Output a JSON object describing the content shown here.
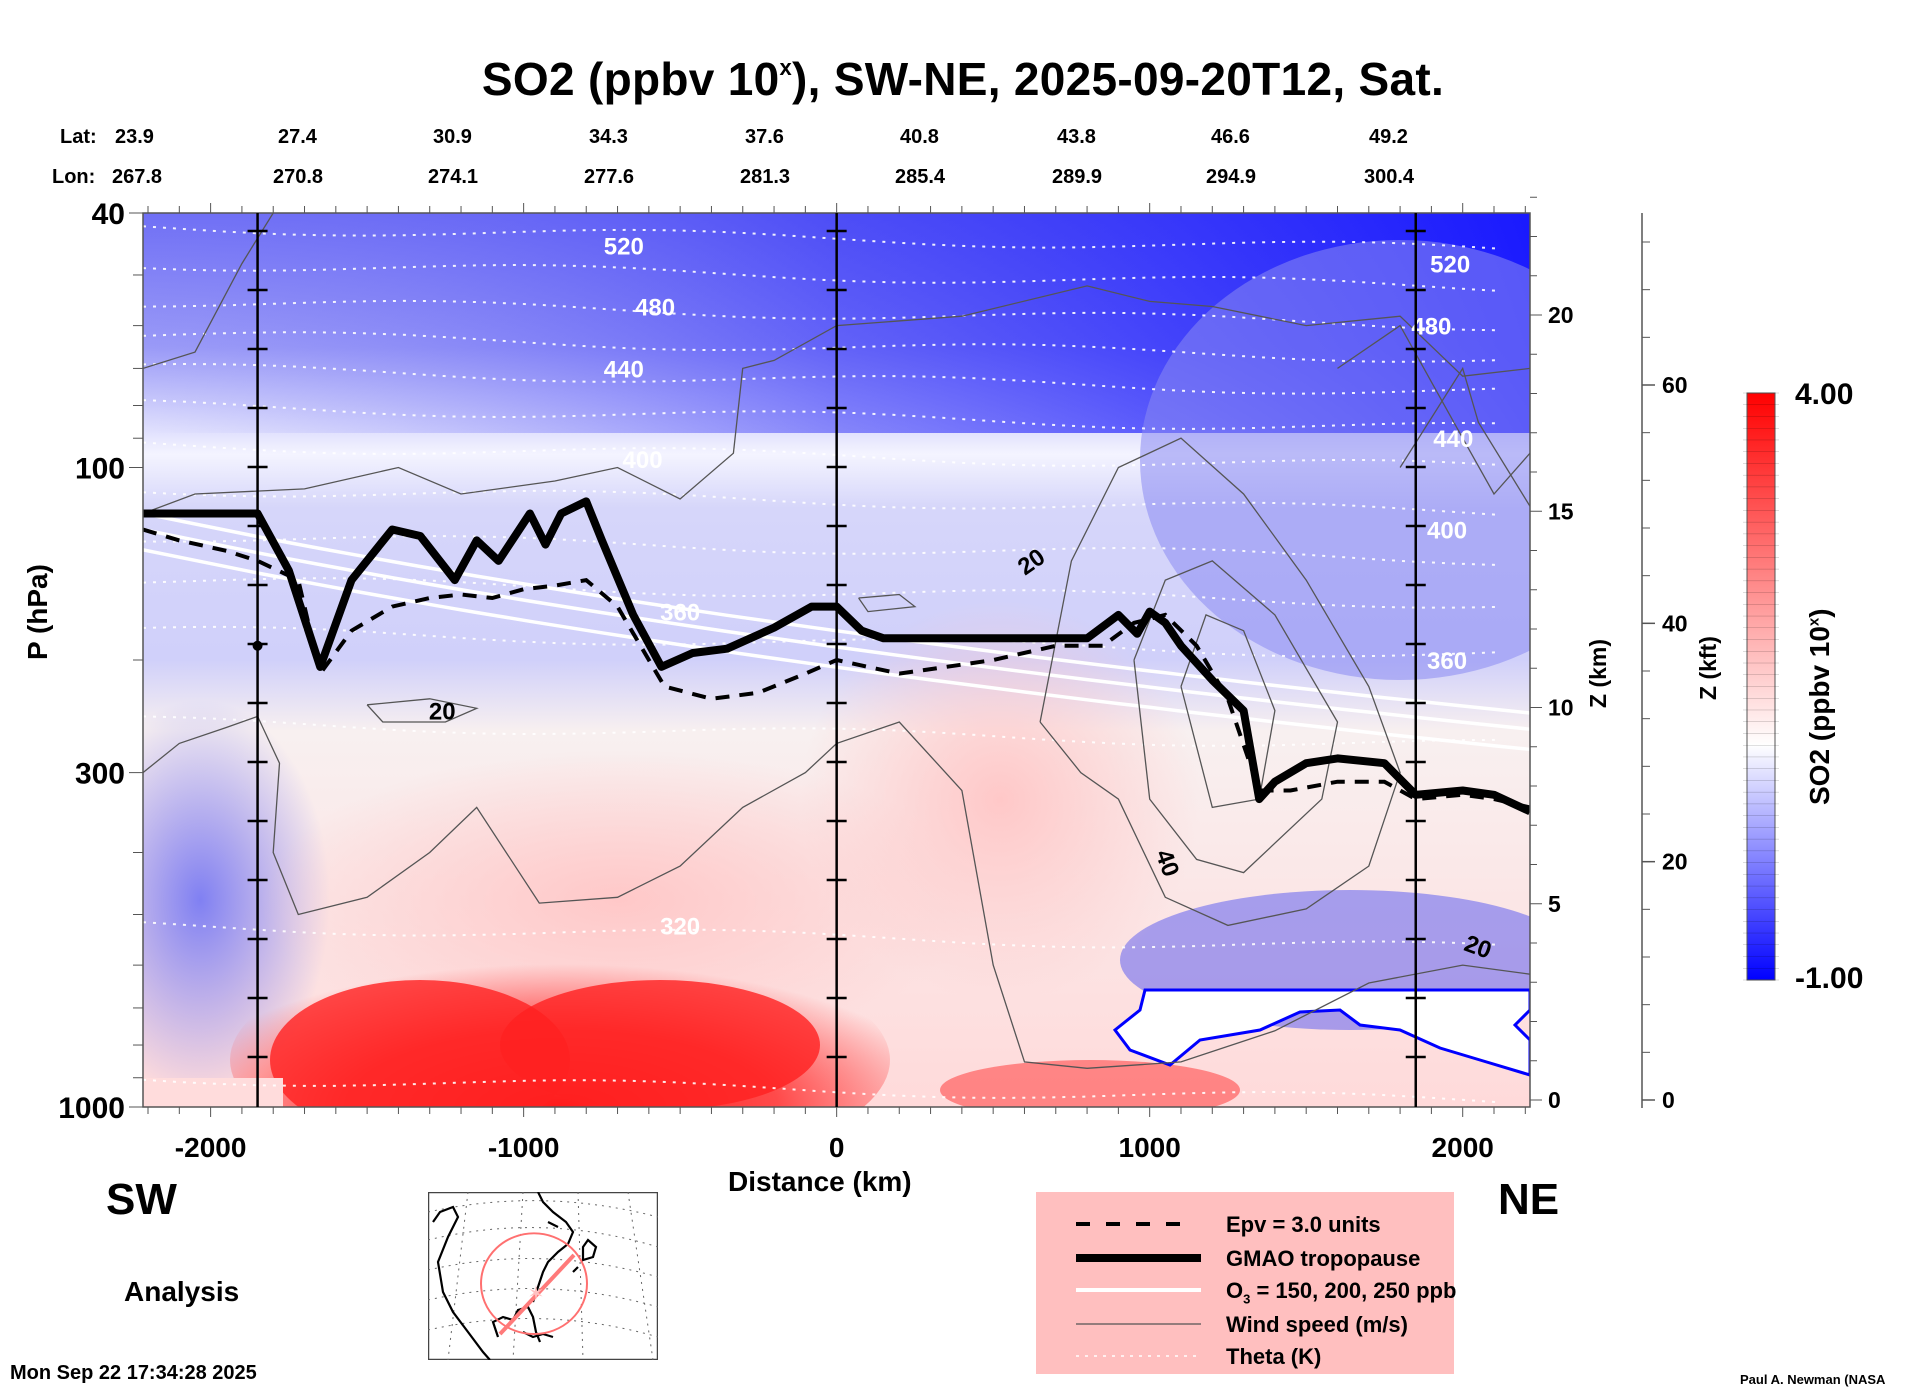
{
  "chart_data": {
    "type": "heatmap",
    "title_main": "SO2 (ppbv 10",
    "title_sup": "x",
    "title_rest": "), SW-NE, 2025-09-20T12, Sat.",
    "xlabel": "Distance (km)",
    "ylabel": "P (hPa)",
    "xlim": [
      -2216,
      2215
    ],
    "ylim_hpa": [
      1000,
      40
    ],
    "x_ticks": [
      {
        "value": -2000,
        "label": "-2000"
      },
      {
        "value": -1000,
        "label": "-1000"
      },
      {
        "value": 0,
        "label": "0"
      },
      {
        "value": 1000,
        "label": "1000"
      },
      {
        "value": 2000,
        "label": "2000"
      }
    ],
    "y_ticks": [
      {
        "value": 40,
        "label": "40"
      },
      {
        "value": 100,
        "label": "100"
      },
      {
        "value": 300,
        "label": "300"
      },
      {
        "value": 1000,
        "label": "1000"
      }
    ],
    "z_km_axis": {
      "label": "Z (km)",
      "ticks": [
        {
          "value": 0,
          "label": "0"
        },
        {
          "value": 5,
          "label": "5"
        },
        {
          "value": 10,
          "label": "10"
        },
        {
          "value": 15,
          "label": "15"
        },
        {
          "value": 20,
          "label": "20"
        }
      ]
    },
    "z_kft_axis": {
      "label": "Z (kft)",
      "ticks": [
        {
          "value": 0,
          "label": "0"
        },
        {
          "value": 20,
          "label": "20"
        },
        {
          "value": 40,
          "label": "40"
        },
        {
          "value": 60,
          "label": "60"
        }
      ]
    },
    "lat_label": "Lat:",
    "lon_label": "Lon:",
    "lat_values": [
      "23.9",
      "27.4",
      "30.9",
      "34.3",
      "37.6",
      "40.8",
      "43.8",
      "46.6",
      "49.2"
    ],
    "lon_values": [
      "267.8",
      "270.8",
      "274.1",
      "277.6",
      "281.3",
      "285.4",
      "289.9",
      "294.9",
      "300.4"
    ],
    "vertical_markers_km": [
      -1850,
      0,
      1850
    ],
    "colorbar": {
      "label_main": "SO2 (ppbv 10",
      "label_sup": "x",
      "label_rest": ")",
      "min": -1.0,
      "max": 4.0,
      "min_label": "-1.00",
      "max_label": "4.00",
      "low_color": "#0000ff",
      "mid_color": "#ffffff",
      "high_color": "#ff0000"
    },
    "theta_labels": [
      {
        "value": "520",
        "x_km": -680,
        "p_hpa": 45
      },
      {
        "value": "480",
        "x_km": -580,
        "p_hpa": 56
      },
      {
        "value": "440",
        "x_km": -680,
        "p_hpa": 70
      },
      {
        "value": "400",
        "x_km": -620,
        "p_hpa": 97
      },
      {
        "value": "360",
        "x_km": -500,
        "p_hpa": 168
      },
      {
        "value": "320",
        "x_km": -500,
        "p_hpa": 520
      },
      {
        "value": "520",
        "x_km": 1960,
        "p_hpa": 48
      },
      {
        "value": "480",
        "x_km": 1900,
        "p_hpa": 60
      },
      {
        "value": "440",
        "x_km": 1970,
        "p_hpa": 90
      },
      {
        "value": "400",
        "x_km": 1950,
        "p_hpa": 125
      },
      {
        "value": "360",
        "x_km": 1950,
        "p_hpa": 200
      }
    ],
    "wind_labels": [
      {
        "value": "20",
        "x_km": -1260,
        "p_hpa": 240
      },
      {
        "value": "20",
        "x_km": 620,
        "p_hpa": 140
      },
      {
        "value": "40",
        "x_km": 1060,
        "p_hpa": 415
      },
      {
        "value": "20",
        "x_km": 2050,
        "p_hpa": 560
      }
    ],
    "tropopause": {
      "x_km": [
        -2216,
        -1850,
        -1750,
        -1650,
        -1550,
        -1420,
        -1330,
        -1220,
        -1150,
        -1080,
        -980,
        -930,
        -880,
        -800,
        -750,
        -650,
        -560,
        -460,
        -350,
        -200,
        -80,
        0,
        80,
        150,
        300,
        600,
        800,
        900,
        960,
        1000,
        1050,
        1100,
        1200,
        1300,
        1350,
        1400,
        1500,
        1600,
        1750,
        1850,
        2000,
        2100,
        2215
      ],
      "p_hpa": [
        118,
        118,
        145,
        205,
        150,
        125,
        128,
        150,
        130,
        140,
        118,
        132,
        118,
        113,
        130,
        170,
        205,
        195,
        192,
        178,
        165,
        165,
        180,
        185,
        185,
        185,
        185,
        170,
        182,
        168,
        175,
        190,
        215,
        240,
        330,
        310,
        290,
        285,
        290,
        325,
        320,
        325,
        345
      ]
    },
    "epv_3": {
      "x_km": [
        -2216,
        -2100,
        -1950,
        -1850,
        -1720,
        -1650,
        -1550,
        -1420,
        -1300,
        -1200,
        -1100,
        -1000,
        -900,
        -800,
        -700,
        -550,
        -400,
        -250,
        -100,
        0,
        100,
        200,
        350,
        500,
        700,
        850,
        950,
        1050,
        1150,
        1250,
        1350,
        1450,
        1600,
        1750,
        1850,
        2000,
        2100,
        2215
      ],
      "p_hpa": [
        125,
        130,
        135,
        140,
        150,
        210,
        180,
        165,
        160,
        158,
        160,
        155,
        153,
        150,
        165,
        220,
        230,
        225,
        210,
        200,
        205,
        210,
        205,
        200,
        190,
        190,
        175,
        170,
        190,
        230,
        320,
        320,
        310,
        310,
        330,
        325,
        330,
        340
      ]
    },
    "legend": [
      {
        "label": "Epv = 3.0 units",
        "style": "dashed-thick"
      },
      {
        "label": "GMAO tropopause",
        "style": "solid-thick"
      },
      {
        "label_main": "O",
        "label_sub": "3",
        "label_rest": " = 150, 200, 250 ppb",
        "style": "white-solid"
      },
      {
        "label": "Wind speed (m/s)",
        "style": "thin-gray"
      },
      {
        "label": "Theta (K)",
        "style": "white-dotted"
      }
    ]
  },
  "labels": {
    "sw": "SW",
    "ne": "NE",
    "analysis": "Analysis",
    "timestamp": "Mon Sep 22 17:34:28 2025",
    "credit": "Paul A. Newman (NASA"
  }
}
